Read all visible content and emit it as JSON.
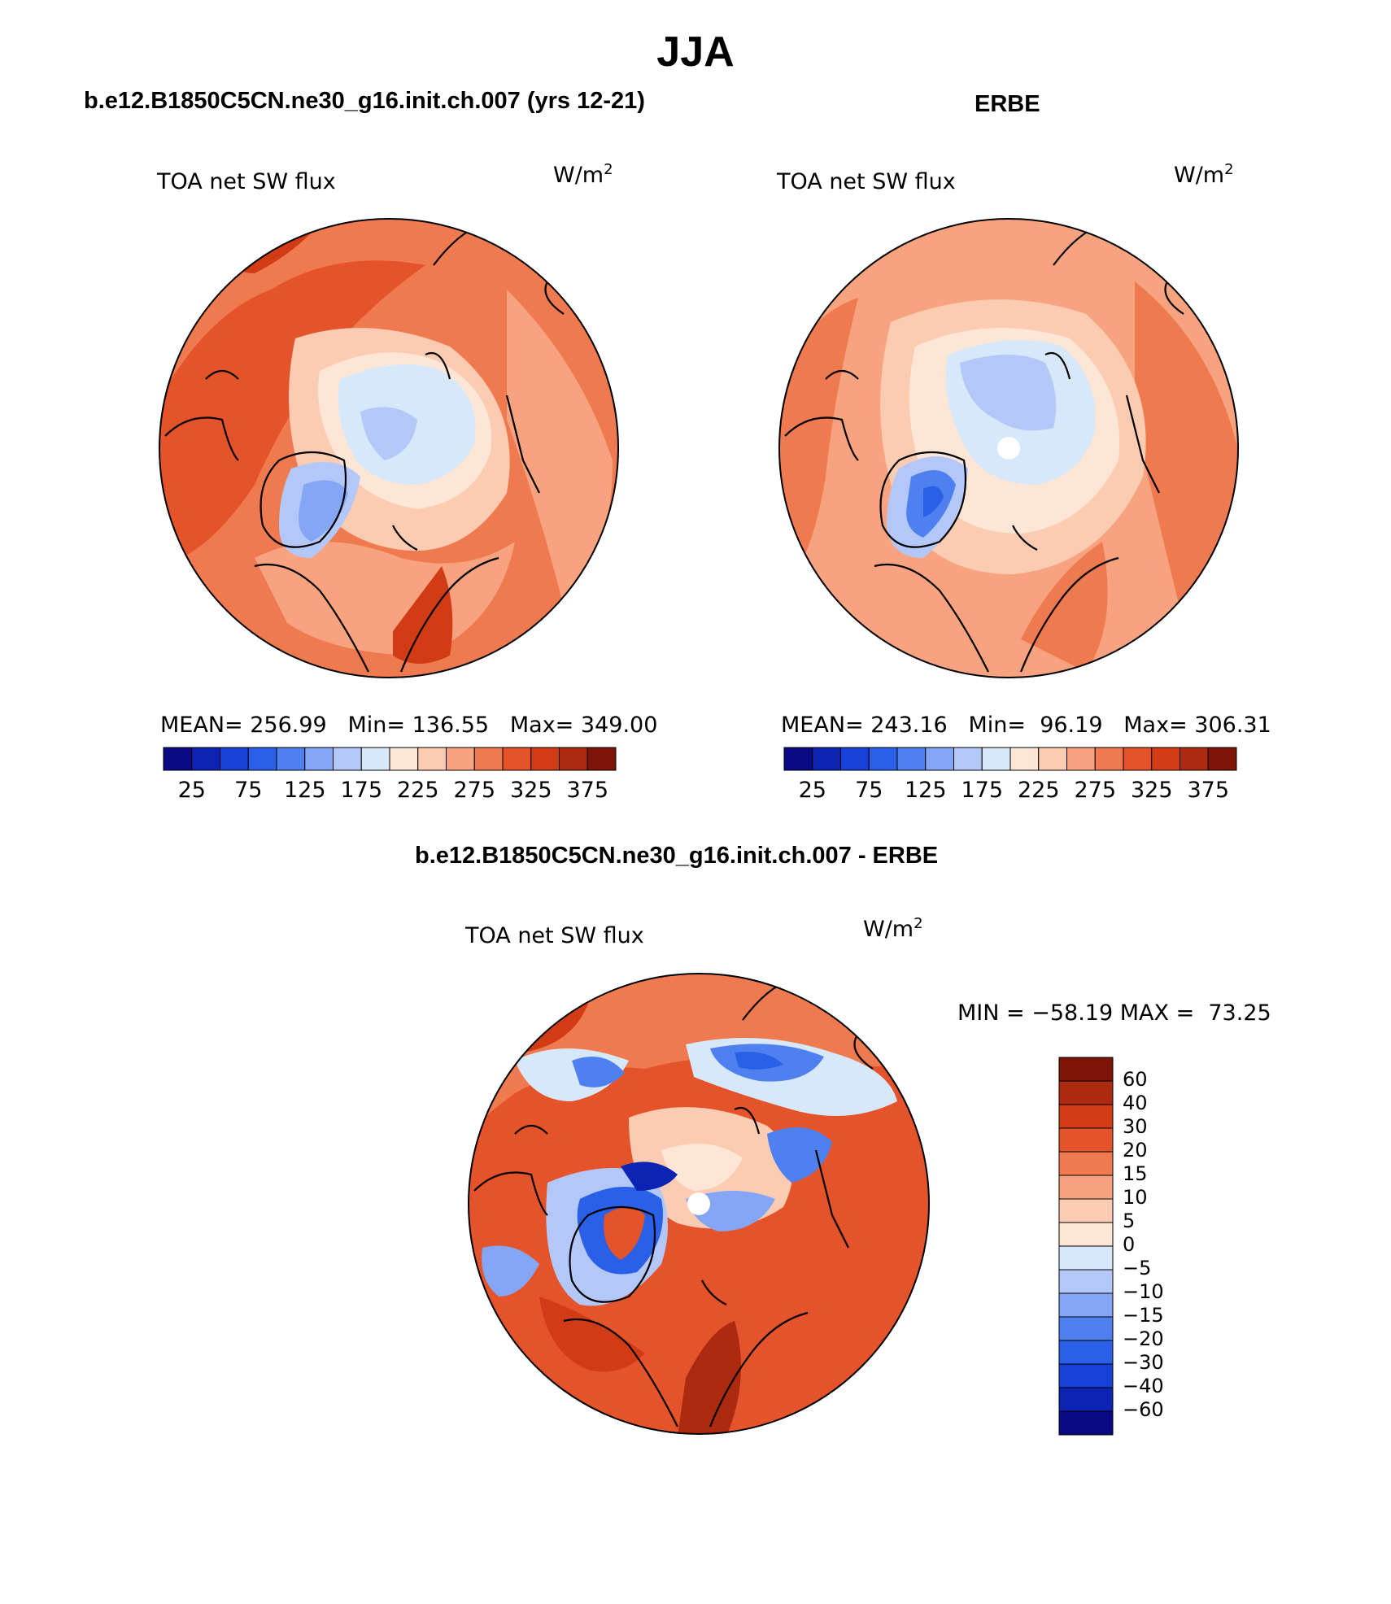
{
  "figure": {
    "season": "JJA",
    "colors": {
      "cbar_main": [
        "#0a0a85",
        "#0c23b4",
        "#1740d9",
        "#2a5fe8",
        "#4f80ef",
        "#85a6f4",
        "#b3c8f8",
        "#d8e8fb",
        "#fde6d6",
        "#fbcbb2",
        "#f7a380",
        "#f07a4f",
        "#e5532b",
        "#d13c17",
        "#ab2a10",
        "#7e1408"
      ],
      "cbar_diff": [
        "#0a0a85",
        "#0c23b4",
        "#1740d9",
        "#2a5fe8",
        "#4f80ef",
        "#85a6f4",
        "#b3c8f8",
        "#d8e8fb",
        "#fde6d6",
        "#fbcbb2",
        "#f7a380",
        "#f07a4f",
        "#e5532b",
        "#d13c17",
        "#ab2a10",
        "#7e1408"
      ],
      "land_outline": "#000000"
    },
    "panels": [
      {
        "title": "b.e12.B1850C5CN.ne30_g16.init.ch.007 (yrs 12-21)",
        "variable": "TOA net SW flux",
        "units": "W/m",
        "units_exp": "2",
        "stats": {
          "mean_label": "MEAN=",
          "mean": "256.99",
          "min_label": "Min=",
          "min": "136.55",
          "max_label": "Max=",
          "max": "349.00"
        },
        "colorbar_ticks": [
          "25",
          "75",
          "125",
          "175",
          "225",
          "275",
          "325",
          "375"
        ]
      },
      {
        "title": "ERBE",
        "variable": "TOA net SW flux",
        "units": "W/m",
        "units_exp": "2",
        "stats": {
          "mean_label": "MEAN=",
          "mean": "243.16",
          "min_label": "Min=",
          "min": "96.19",
          "max_label": "Max=",
          "max": "306.31"
        },
        "colorbar_ticks": [
          "25",
          "75",
          "125",
          "175",
          "225",
          "275",
          "325",
          "375"
        ]
      },
      {
        "title": "b.e12.B1850C5CN.ne30_g16.init.ch.007 - ERBE",
        "variable": "TOA net SW flux",
        "units": "W/m",
        "units_exp": "2",
        "stats_line": "MIN = −58.19 MAX =  73.25",
        "colorbar_ticks": [
          "60",
          "40",
          "30",
          "20",
          "15",
          "10",
          "5",
          "0",
          "−5",
          "−10",
          "−15",
          "−20",
          "−30",
          "−40",
          "−60"
        ]
      }
    ]
  }
}
